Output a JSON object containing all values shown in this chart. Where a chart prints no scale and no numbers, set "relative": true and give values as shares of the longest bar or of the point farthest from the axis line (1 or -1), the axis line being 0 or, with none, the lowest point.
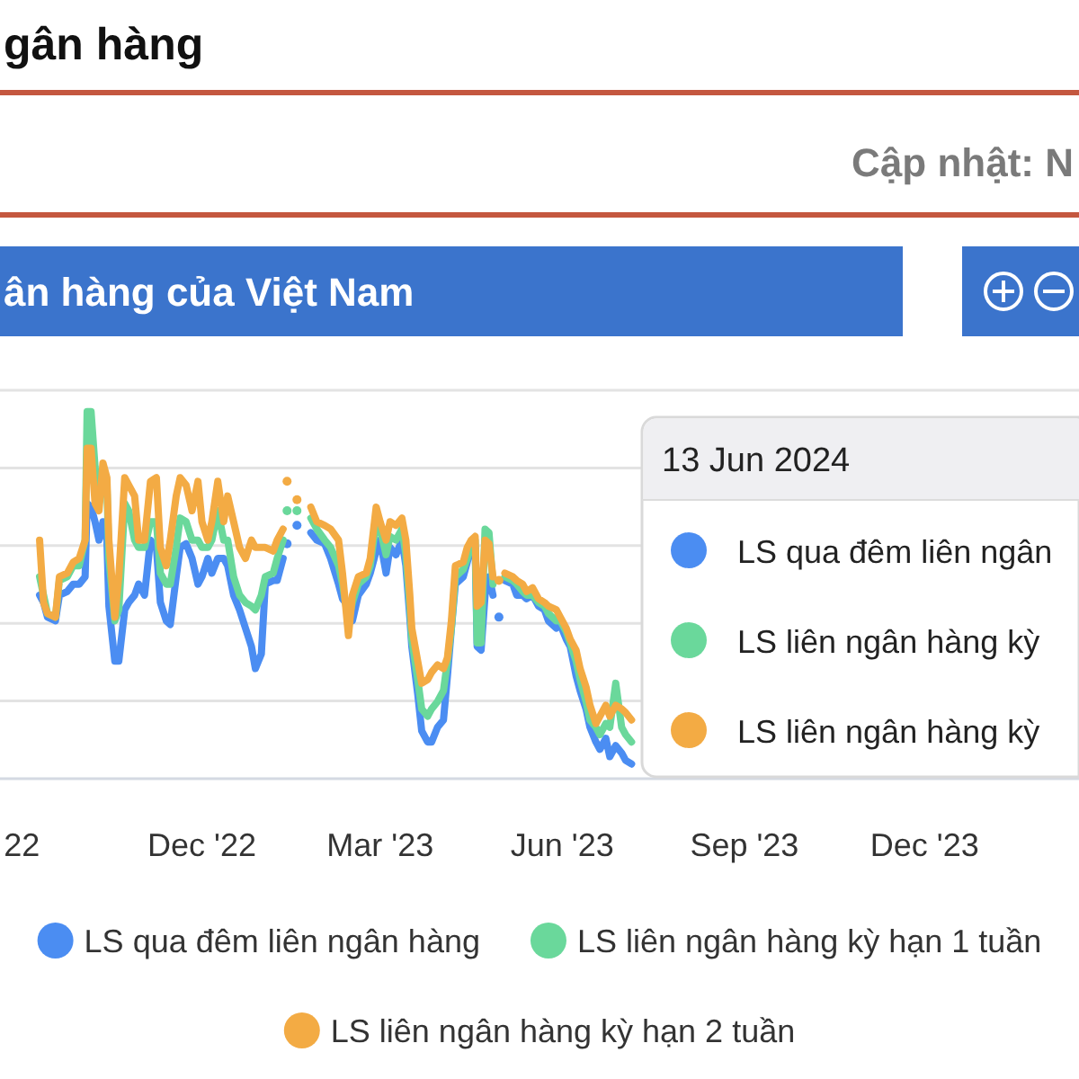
{
  "chart_data": {
    "type": "line",
    "title": "gân hàng",
    "subtitle": "ân hàng của Việt Nam",
    "annotations": [
      "Cập nhật: N",
      "13 Jun 2024",
      "LS qua đêm liên ngân",
      "LS liên ngân hàng kỳ",
      "LS liên ngân hàng kỳ"
    ],
    "relative": true,
    "grid": "y",
    "legend": "bottom",
    "xlim": [
      "2022-08-21",
      "2024-02-17"
    ],
    "xticks": [
      {
        "value": "2022-09-01",
        "label": "22"
      },
      {
        "value": "2022-12-01",
        "label": "Dec '22"
      },
      {
        "value": "2023-03-01",
        "label": "Mar '23"
      },
      {
        "value": "2023-06-01",
        "label": "Jun '23"
      },
      {
        "value": "2023-09-01",
        "label": "Sep '23"
      },
      {
        "value": "2023-12-01",
        "label": "Dec '23"
      }
    ],
    "x": [
      "2022-09-10",
      "2022-09-12",
      "2022-09-14",
      "2022-09-18",
      "2022-09-20",
      "2022-09-24",
      "2022-09-27",
      "2022-09-30",
      "2022-10-03",
      "2022-10-04",
      "2022-10-06",
      "2022-10-08",
      "2022-10-10",
      "2022-10-12",
      "2022-10-14",
      "2022-10-15",
      "2022-10-18",
      "2022-10-20",
      "2022-10-23",
      "2022-10-25",
      "2022-10-28",
      "2022-10-30",
      "2022-11-02",
      "2022-11-05",
      "2022-11-08",
      "2022-11-10",
      "2022-11-13",
      "2022-11-15",
      "2022-11-18",
      "2022-11-20",
      "2022-11-23",
      "2022-11-26",
      "2022-11-29",
      "2022-12-01",
      "2022-12-04",
      "2022-12-06",
      "2022-12-09",
      "2022-12-12",
      "2022-12-14",
      "2022-12-17",
      "2022-12-20",
      "2022-12-23",
      "2022-12-26",
      "2022-12-28",
      "2022-12-31",
      "2023-01-02",
      "2023-01-06",
      "2023-01-08",
      "2023-01-11",
      "2023-01-12",
      "2023-01-13",
      "2023-01-15",
      "2023-01-18",
      "2023-01-21",
      "2023-01-25",
      "2023-01-28",
      "2023-02-01",
      "2023-02-04",
      "2023-02-08",
      "2023-02-10",
      "2023-02-13",
      "2023-02-15",
      "2023-02-18",
      "2023-02-22",
      "2023-02-24",
      "2023-02-27",
      "2023-03-01",
      "2023-03-04",
      "2023-03-06",
      "2023-03-09",
      "2023-03-12",
      "2023-03-14",
      "2023-03-16",
      "2023-03-17",
      "2023-03-20",
      "2023-03-22",
      "2023-03-25",
      "2023-03-27",
      "2023-03-30",
      "2023-04-02",
      "2023-04-04",
      "2023-04-06",
      "2023-04-08",
      "2023-04-12",
      "2023-04-14",
      "2023-04-16",
      "2023-04-18",
      "2023-04-19",
      "2023-04-21",
      "2023-04-23",
      "2023-04-25",
      "2023-04-27",
      "2023-04-28",
      "2023-04-30",
      "2023-05-02",
      "2023-05-03",
      "2023-05-07",
      "2023-05-09",
      "2023-05-12",
      "2023-05-14",
      "2023-05-17",
      "2023-05-20",
      "2023-05-23",
      "2023-05-25",
      "2023-05-29",
      "2023-05-31",
      "2023-06-03",
      "2023-06-05",
      "2023-06-08",
      "2023-06-10",
      "2023-06-13",
      "2023-06-15",
      "2023-06-18",
      "2023-06-20",
      "2023-06-23",
      "2023-06-25",
      "2023-06-28",
      "2023-07-01",
      "2023-07-03",
      "2023-07-06"
    ],
    "series": [
      {
        "name": "LS qua đêm liên ngân hàng",
        "color": "#4b8df2",
        "values": [
          0.5,
          0.48,
          0.44,
          0.43,
          0.5,
          0.51,
          0.53,
          0.53,
          0.55,
          0.75,
          0.74,
          0.7,
          0.65,
          0.7,
          0.65,
          0.47,
          0.32,
          0.32,
          0.46,
          0.48,
          0.5,
          0.53,
          0.5,
          0.65,
          0.63,
          0.48,
          0.43,
          0.42,
          0.55,
          0.63,
          0.64,
          0.6,
          0.53,
          0.55,
          0.6,
          0.56,
          0.6,
          0.6,
          0.58,
          0.5,
          0.46,
          0.41,
          0.36,
          0.3,
          0.34,
          0.53,
          0.54,
          0.54,
          0.6,
          null,
          0.64,
          null,
          0.69,
          null,
          0.67,
          0.65,
          0.64,
          0.6,
          0.53,
          0.49,
          0.47,
          0.43,
          0.5,
          0.53,
          0.56,
          0.62,
          0.65,
          0.56,
          0.63,
          0.61,
          0.65,
          0.58,
          0.44,
          0.36,
          0.23,
          0.13,
          0.1,
          0.1,
          0.14,
          0.16,
          0.28,
          0.41,
          0.53,
          0.55,
          0.59,
          0.63,
          0.63,
          0.36,
          0.35,
          0.5,
          0.55,
          0.5,
          null,
          0.44,
          null,
          0.54,
          0.53,
          0.5,
          0.5,
          0.49,
          0.5,
          0.47,
          0.46,
          0.43,
          0.41,
          0.42,
          0.38,
          0.36,
          0.28,
          0.24,
          0.19,
          0.14,
          0.1,
          0.08,
          0.11,
          0.06,
          0.09,
          0.07,
          0.05,
          0.04
        ]
      },
      {
        "name": "LS liên ngân hàng kỳ hạn 1 tuần",
        "color": "#6ad89b",
        "values": [
          0.55,
          0.5,
          0.45,
          0.44,
          0.54,
          0.55,
          0.58,
          0.58,
          0.65,
          1.0,
          1.0,
          0.85,
          0.75,
          0.82,
          0.8,
          0.6,
          0.43,
          0.46,
          0.75,
          0.73,
          0.65,
          0.63,
          0.63,
          0.7,
          0.7,
          0.56,
          0.53,
          0.53,
          0.63,
          0.71,
          0.7,
          0.65,
          0.65,
          0.63,
          0.63,
          0.65,
          0.73,
          0.65,
          0.65,
          0.55,
          0.5,
          0.48,
          0.47,
          0.46,
          0.5,
          0.55,
          0.56,
          0.6,
          0.65,
          null,
          0.73,
          null,
          0.73,
          null,
          0.71,
          0.68,
          0.65,
          0.63,
          0.58,
          0.53,
          0.43,
          0.48,
          0.53,
          0.55,
          0.58,
          0.7,
          0.68,
          0.61,
          0.66,
          0.65,
          0.68,
          0.61,
          0.47,
          0.38,
          0.27,
          0.19,
          0.17,
          0.19,
          0.21,
          0.24,
          0.32,
          0.41,
          0.55,
          0.57,
          0.6,
          0.64,
          0.65,
          0.37,
          0.37,
          0.68,
          0.67,
          0.53,
          null,
          null,
          null,
          0.55,
          0.54,
          0.53,
          0.51,
          0.5,
          0.5,
          0.48,
          0.47,
          0.45,
          0.43,
          0.43,
          0.4,
          0.37,
          0.32,
          0.27,
          0.21,
          0.16,
          0.14,
          0.12,
          0.15,
          0.14,
          0.26,
          0.14,
          0.12,
          0.1
        ]
      },
      {
        "name": "LS liên ngân hàng kỳ hạn 2 tuần",
        "color": "#f3ab44",
        "values": [
          0.65,
          0.48,
          0.45,
          0.44,
          0.55,
          0.56,
          0.59,
          0.6,
          0.65,
          0.9,
          0.9,
          0.75,
          0.73,
          0.86,
          0.82,
          0.65,
          0.44,
          0.55,
          0.82,
          0.8,
          0.77,
          0.65,
          0.65,
          0.81,
          0.82,
          0.63,
          0.58,
          0.65,
          0.77,
          0.82,
          0.8,
          0.73,
          0.81,
          0.7,
          0.65,
          0.7,
          0.81,
          0.7,
          0.77,
          0.7,
          0.63,
          0.6,
          0.65,
          0.63,
          0.63,
          0.63,
          0.62,
          0.65,
          0.68,
          null,
          0.81,
          null,
          0.76,
          null,
          0.74,
          0.7,
          0.69,
          0.68,
          0.65,
          0.56,
          0.39,
          0.5,
          0.55,
          0.56,
          0.6,
          0.74,
          0.7,
          0.65,
          0.7,
          0.69,
          0.71,
          0.65,
          0.5,
          0.41,
          0.32,
          0.26,
          0.27,
          0.29,
          0.31,
          0.3,
          0.33,
          0.43,
          0.58,
          0.59,
          0.63,
          0.65,
          0.66,
          0.47,
          0.48,
          0.65,
          0.64,
          0.55,
          null,
          0.54,
          null,
          0.56,
          0.55,
          0.54,
          0.53,
          0.51,
          0.52,
          0.49,
          0.48,
          0.47,
          0.46,
          0.44,
          0.41,
          0.38,
          0.35,
          0.3,
          0.25,
          0.2,
          0.15,
          0.17,
          0.2,
          0.17,
          0.2,
          0.19,
          0.18,
          0.16
        ]
      }
    ]
  }
}
